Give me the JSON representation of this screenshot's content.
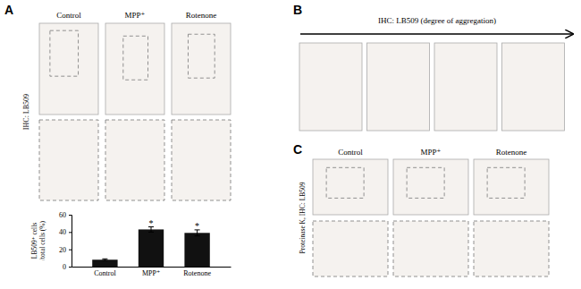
{
  "chart_data": {
    "type": "bar",
    "categories": [
      "Control",
      "MPP⁺",
      "Rotenone"
    ],
    "values": [
      8.0,
      43.0,
      39.0
    ],
    "errors": [
      1.0,
      3.0,
      3.5
    ],
    "color": "#111111",
    "ylabel": "LB509⁺ cells\n/total cells (%)",
    "ylim": [
      0,
      60
    ],
    "yticks": [
      0,
      20,
      40,
      60
    ],
    "grid": false,
    "annotations": [
      {
        "text": "*",
        "category": "MPP⁺"
      },
      {
        "text": "*",
        "category": "Rotenone"
      }
    ]
  },
  "panels": [
    {
      "label": "A",
      "column_labels": [
        "Control",
        "MPP⁺",
        "Rotenone"
      ],
      "row_label": "IHC: LB509"
    },
    {
      "label": "B",
      "row_label": "IHC: LB509 (degree of aggregation)"
    },
    {
      "label": "C",
      "column_labels": [
        "Control",
        "MPP⁺",
        "Rotenone"
      ],
      "row_label": "Proteinase K, IHC: LB509"
    }
  ]
}
